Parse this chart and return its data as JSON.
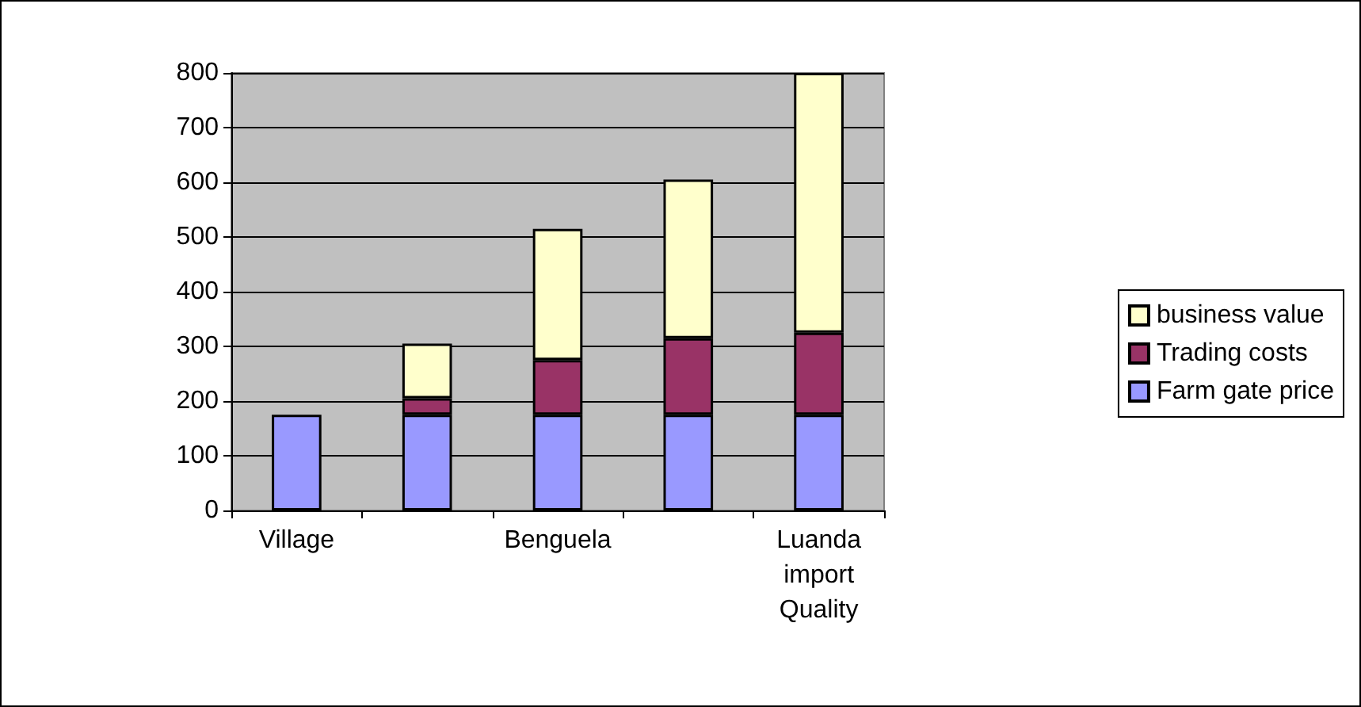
{
  "chart_data": {
    "type": "bar",
    "stacked": true,
    "categories": [
      "Village",
      null,
      "Benguela",
      null,
      "Luanda import Quality"
    ],
    "series": [
      {
        "name": "Farm gate price",
        "color": "#9999ff",
        "values": [
          175,
          175,
          175,
          175,
          175
        ]
      },
      {
        "name": "Trading costs",
        "color": "#993366",
        "values": [
          null,
          30,
          100,
          140,
          150
        ]
      },
      {
        "name": "business value",
        "color": "#ffffcc",
        "values": [
          null,
          100,
          240,
          290,
          475
        ]
      }
    ],
    "ylim": [
      0,
      800
    ],
    "yticks": [
      0,
      100,
      200,
      300,
      400,
      500,
      600,
      700,
      800
    ],
    "grid": "y",
    "legend": "right"
  }
}
